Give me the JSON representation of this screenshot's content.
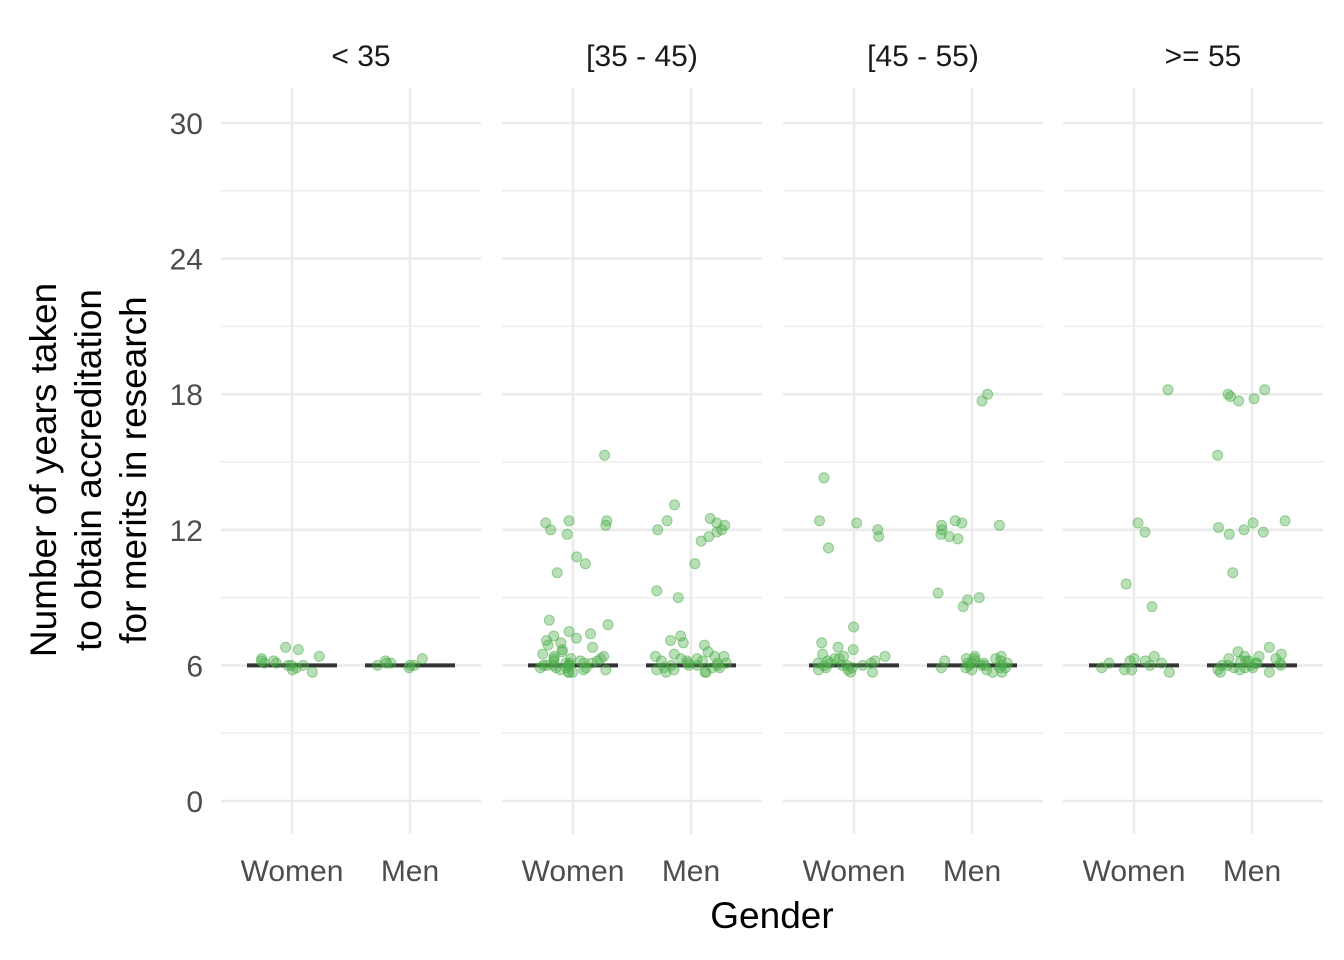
{
  "chart_data": {
    "type": "scatter",
    "description_free": true,
    "xlabel": "Gender",
    "ylabel_lines": [
      "Number of years taken",
      "to obtain accreditation",
      "for merits in research"
    ],
    "ylim": [
      -1,
      31
    ],
    "yticks": [
      0,
      6,
      12,
      18,
      24,
      30
    ],
    "minor_yticks": [
      3,
      9,
      15,
      21,
      27
    ],
    "grid": true,
    "point_color": "#4DAF4A",
    "median_color": "#333333",
    "categories": [
      "Women",
      "Men"
    ],
    "panels": [
      {
        "label": "< 35",
        "groups": [
          {
            "category": "Women",
            "median": 6,
            "values": [
              6.0,
              5.9,
              6.1,
              6.2,
              6.0,
              5.8,
              6.3,
              6.4,
              6.7,
              6.8,
              6.1,
              5.7,
              6.0,
              6.2
            ]
          },
          {
            "category": "Men",
            "median": 6,
            "values": [
              6.0,
              6.1,
              6.3,
              6.2,
              6.0,
              5.9,
              6.1,
              6.0
            ]
          }
        ]
      },
      {
        "label": "[35 - 45)",
        "groups": [
          {
            "category": "Women",
            "median": 6,
            "values": [
              15.3,
              12.4,
              12.3,
              12.4,
              12.2,
              12.0,
              11.8,
              10.8,
              10.5,
              10.1,
              8.0,
              7.8,
              7.5,
              7.3,
              7.2,
              7.0,
              6.9,
              6.8,
              6.7,
              6.6,
              6.5,
              6.4,
              6.4,
              6.3,
              6.3,
              6.2,
              6.2,
              6.1,
              6.1,
              6.1,
              6.0,
              6.0,
              6.0,
              6.0,
              5.9,
              5.9,
              5.9,
              5.8,
              5.8,
              5.8,
              5.7,
              5.7,
              5.7,
              6.2,
              6.1,
              6.0,
              5.9,
              6.3,
              7.4,
              7.1
            ]
          },
          {
            "category": "Men",
            "median": 6,
            "values": [
              13.1,
              12.5,
              12.3,
              12.2,
              12.0,
              11.9,
              11.7,
              11.5,
              10.5,
              9.3,
              9.0,
              7.3,
              7.1,
              7.0,
              6.9,
              6.6,
              6.5,
              6.4,
              6.4,
              6.3,
              6.3,
              6.2,
              6.2,
              6.1,
              6.1,
              6.0,
              6.0,
              6.0,
              5.9,
              5.9,
              5.9,
              5.8,
              5.8,
              5.7,
              5.7,
              5.7,
              6.2,
              6.1,
              6.0,
              6.4,
              12.4,
              12.0
            ]
          }
        ]
      },
      {
        "label": "[45 - 55)",
        "groups": [
          {
            "category": "Women",
            "median": 6,
            "values": [
              14.3,
              12.4,
              12.3,
              12.0,
              11.7,
              11.2,
              7.7,
              7.0,
              6.8,
              6.7,
              6.5,
              6.4,
              6.3,
              6.3,
              6.2,
              6.2,
              6.1,
              6.1,
              6.0,
              6.0,
              6.0,
              5.9,
              5.9,
              5.8,
              5.8,
              5.7,
              5.7,
              6.1,
              6.0,
              6.4
            ]
          },
          {
            "category": "Men",
            "median": 6,
            "values": [
              18.0,
              17.7,
              12.4,
              12.3,
              12.2,
              12.2,
              12.0,
              11.8,
              11.7,
              11.6,
              9.2,
              9.0,
              8.9,
              8.6,
              6.4,
              6.4,
              6.3,
              6.3,
              6.2,
              6.2,
              6.1,
              6.1,
              6.0,
              6.0,
              6.0,
              5.9,
              5.9,
              5.9,
              5.8,
              5.8,
              5.7,
              5.7,
              6.2,
              6.1,
              6.0,
              6.3,
              6.1,
              5.9
            ]
          }
        ]
      },
      {
        "label": ">= 55",
        "groups": [
          {
            "category": "Women",
            "median": 6,
            "values": [
              18.2,
              12.3,
              11.9,
              9.6,
              8.6,
              6.4,
              6.3,
              6.2,
              6.1,
              6.0,
              5.9,
              5.8,
              5.8,
              5.7,
              6.2,
              6.1
            ]
          },
          {
            "category": "Men",
            "median": 6,
            "values": [
              18.2,
              18.0,
              17.9,
              17.8,
              17.7,
              15.3,
              12.4,
              12.3,
              12.1,
              12.0,
              11.8,
              11.9,
              10.1,
              6.8,
              6.6,
              6.5,
              6.4,
              6.4,
              6.3,
              6.3,
              6.2,
              6.2,
              6.1,
              6.1,
              6.0,
              6.0,
              6.0,
              5.9,
              5.9,
              5.9,
              5.8,
              5.8,
              5.7,
              5.7,
              6.2,
              6.1,
              6.0
            ]
          }
        ]
      }
    ]
  }
}
